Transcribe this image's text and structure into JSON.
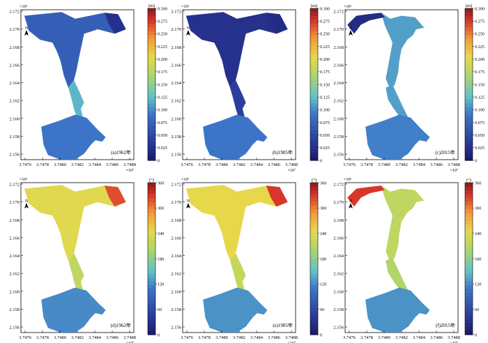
{
  "figure": {
    "north_label": "N",
    "x_exponent": "×10⁷",
    "y_exponent": "×10⁶",
    "x_ticks": [
      "3.7476",
      "3.7478",
      "3.7480",
      "3.7482",
      "3.7484",
      "3.7486",
      "3.7488"
    ],
    "y_ticks": [
      "2.172",
      "2.170",
      "2.168",
      "2.166",
      "2.164",
      "2.162",
      "2.160",
      "2.158",
      "2.156"
    ]
  },
  "chart_data": [
    {
      "type": "heatmap",
      "panel": "a",
      "label": "(a)1962年",
      "year": 1962,
      "colorbar": {
        "unit": "(m)",
        "min": 0,
        "max": 0.3,
        "ticks": [
          "0.300",
          "0.275",
          "0.250",
          "0.225",
          "0.200",
          "0.175",
          "0.150",
          "0.125",
          "0.100",
          "0.075",
          "0.050",
          "0.025",
          "0"
        ]
      },
      "regions": {
        "harbor": 0.09,
        "channel": 0.12,
        "upper_basin": 0.07,
        "upper_edge": 0.025
      }
    },
    {
      "type": "heatmap",
      "panel": "b",
      "label": "(b)1985年",
      "year": 1985,
      "colorbar": {
        "unit": "(m)",
        "min": 0,
        "max": 0.3,
        "ticks": [
          "0.300",
          "0.275",
          "0.250",
          "0.225",
          "0.200",
          "0.175",
          "0.150",
          "0.125",
          "0.100",
          "0.075",
          "0.050",
          "0.025",
          "0"
        ]
      },
      "regions": {
        "harbor": 0.09,
        "channel": 0.04,
        "upper_basin": 0.025,
        "upper_edge": 0.02
      }
    },
    {
      "type": "heatmap",
      "panel": "c",
      "label": "(c)2015年",
      "year": 2015,
      "colorbar": {
        "unit": "(m)",
        "min": 0,
        "max": 0.3,
        "ticks": [
          "0.300",
          "0.275",
          "0.250",
          "0.225",
          "0.200",
          "0.175",
          "0.150",
          "0.125",
          "0.100",
          "0.075",
          "0.050",
          "0.025",
          "0"
        ]
      },
      "regions": {
        "harbor": 0.095,
        "channel": 0.11,
        "upper_basin": 0.11,
        "upper_edge": 0.02
      }
    },
    {
      "type": "heatmap",
      "panel": "d",
      "label": "(d)1962年",
      "year": 1962,
      "colorbar": {
        "unit": "(°)",
        "min": 0,
        "max": 360,
        "ticks": [
          "360",
          "300",
          "240",
          "180",
          "120",
          "60",
          "0"
        ]
      },
      "regions": {
        "harbor": 120,
        "channel": 215,
        "upper_basin": 240,
        "upper_edge": 320
      }
    },
    {
      "type": "heatmap",
      "panel": "e",
      "label": "(e)1985年",
      "year": 1985,
      "colorbar": {
        "unit": "(°)",
        "min": 0,
        "max": 360,
        "ticks": [
          "360",
          "300",
          "240",
          "180",
          "120",
          "60",
          "0"
        ]
      },
      "regions": {
        "harbor": 125,
        "channel": 220,
        "upper_basin": 245,
        "upper_edge": 330
      }
    },
    {
      "type": "heatmap",
      "panel": "f",
      "label": "(f)2015年",
      "year": 2015,
      "colorbar": {
        "unit": "(°)",
        "min": 0,
        "max": 360,
        "ticks": [
          "360",
          "300",
          "240",
          "180",
          "120",
          "60",
          "0"
        ]
      },
      "regions": {
        "harbor": 125,
        "channel": 205,
        "upper_basin": 215,
        "upper_edge": 330
      }
    }
  ]
}
